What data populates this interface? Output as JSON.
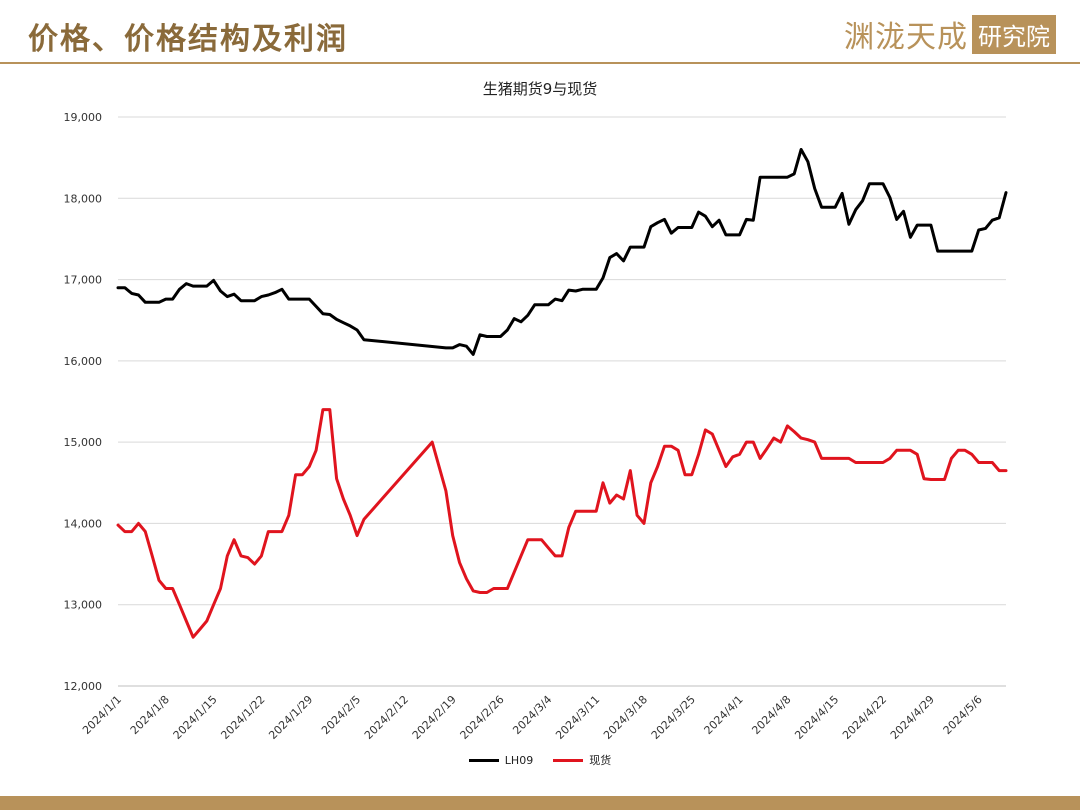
{
  "header": {
    "section_title": "价格、价格结构及利润",
    "brand_main": "渊泷天成",
    "brand_box": "研究院"
  },
  "colors": {
    "accent": "#b8925a",
    "series_futures": "#000000",
    "series_spot": "#e0141e",
    "grid": "#d9d9d9"
  },
  "chart_data": {
    "type": "line",
    "title": "生猪期货9与现货",
    "xlabel": "",
    "ylabel": "",
    "ylim": [
      12000,
      19000
    ],
    "yticks": [
      12000,
      13000,
      14000,
      15000,
      16000,
      17000,
      18000,
      19000
    ],
    "ytick_labels": [
      "12,000",
      "13,000",
      "14,000",
      "15,000",
      "16,000",
      "17,000",
      "18,000",
      "19,000"
    ],
    "xlim": [
      "2024-01-01",
      "2024-05-10"
    ],
    "xticks": [
      "2024-01-01",
      "2024-01-08",
      "2024-01-15",
      "2024-01-22",
      "2024-01-29",
      "2024-02-05",
      "2024-02-12",
      "2024-02-19",
      "2024-02-26",
      "2024-03-04",
      "2024-03-11",
      "2024-03-18",
      "2024-03-25",
      "2024-04-01",
      "2024-04-08",
      "2024-04-15",
      "2024-04-22",
      "2024-04-29",
      "2024-05-06"
    ],
    "xtick_labels": [
      "2024/1/1",
      "2024/1/8",
      "2024/1/15",
      "2024/1/22",
      "2024/1/29",
      "2024/2/5",
      "2024/2/12",
      "2024/2/19",
      "2024/2/26",
      "2024/3/4",
      "2024/3/11",
      "2024/3/18",
      "2024/3/25",
      "2024/4/1",
      "2024/4/8",
      "2024/4/15",
      "2024/4/22",
      "2024/4/29",
      "2024/5/6"
    ],
    "grid": true,
    "legend_position": "bottom",
    "series": [
      {
        "name": "LH09",
        "points": [
          [
            "2024-01-01",
            16900
          ],
          [
            "2024-01-02",
            16900
          ],
          [
            "2024-01-03",
            16830
          ],
          [
            "2024-01-04",
            16810
          ],
          [
            "2024-01-05",
            16720
          ],
          [
            "2024-01-06",
            16720
          ],
          [
            "2024-01-07",
            16720
          ],
          [
            "2024-01-08",
            16760
          ],
          [
            "2024-01-09",
            16760
          ],
          [
            "2024-01-10",
            16880
          ],
          [
            "2024-01-11",
            16950
          ],
          [
            "2024-01-12",
            16920
          ],
          [
            "2024-01-13",
            16920
          ],
          [
            "2024-01-14",
            16920
          ],
          [
            "2024-01-15",
            16990
          ],
          [
            "2024-01-16",
            16860
          ],
          [
            "2024-01-17",
            16790
          ],
          [
            "2024-01-18",
            16820
          ],
          [
            "2024-01-19",
            16740
          ],
          [
            "2024-01-20",
            16740
          ],
          [
            "2024-01-21",
            16740
          ],
          [
            "2024-01-22",
            16790
          ],
          [
            "2024-01-23",
            16810
          ],
          [
            "2024-01-24",
            16840
          ],
          [
            "2024-01-25",
            16880
          ],
          [
            "2024-01-26",
            16760
          ],
          [
            "2024-01-27",
            16760
          ],
          [
            "2024-01-28",
            16760
          ],
          [
            "2024-01-29",
            16760
          ],
          [
            "2024-01-30",
            16670
          ],
          [
            "2024-01-31",
            16580
          ],
          [
            "2024-02-01",
            16570
          ],
          [
            "2024-02-02",
            16510
          ],
          [
            "2024-02-03",
            16470
          ],
          [
            "2024-02-04",
            16430
          ],
          [
            "2024-02-05",
            16380
          ],
          [
            "2024-02-06",
            16260
          ],
          [
            "2024-02-18",
            16160
          ],
          [
            "2024-02-19",
            16160
          ],
          [
            "2024-02-20",
            16200
          ],
          [
            "2024-02-21",
            16180
          ],
          [
            "2024-02-22",
            16080
          ],
          [
            "2024-02-23",
            16320
          ],
          [
            "2024-02-24",
            16300
          ],
          [
            "2024-02-25",
            16300
          ],
          [
            "2024-02-26",
            16300
          ],
          [
            "2024-02-27",
            16380
          ],
          [
            "2024-02-28",
            16520
          ],
          [
            "2024-02-29",
            16480
          ],
          [
            "2024-03-01",
            16560
          ],
          [
            "2024-03-02",
            16690
          ],
          [
            "2024-03-03",
            16690
          ],
          [
            "2024-03-04",
            16690
          ],
          [
            "2024-03-05",
            16760
          ],
          [
            "2024-03-06",
            16740
          ],
          [
            "2024-03-07",
            16870
          ],
          [
            "2024-03-08",
            16860
          ],
          [
            "2024-03-09",
            16880
          ],
          [
            "2024-03-10",
            16880
          ],
          [
            "2024-03-11",
            16880
          ],
          [
            "2024-03-12",
            17020
          ],
          [
            "2024-03-13",
            17270
          ],
          [
            "2024-03-14",
            17320
          ],
          [
            "2024-03-15",
            17230
          ],
          [
            "2024-03-16",
            17400
          ],
          [
            "2024-03-17",
            17400
          ],
          [
            "2024-03-18",
            17400
          ],
          [
            "2024-03-19",
            17650
          ],
          [
            "2024-03-20",
            17700
          ],
          [
            "2024-03-21",
            17740
          ],
          [
            "2024-03-22",
            17570
          ],
          [
            "2024-03-23",
            17640
          ],
          [
            "2024-03-24",
            17640
          ],
          [
            "2024-03-25",
            17640
          ],
          [
            "2024-03-26",
            17830
          ],
          [
            "2024-03-27",
            17780
          ],
          [
            "2024-03-28",
            17650
          ],
          [
            "2024-03-29",
            17730
          ],
          [
            "2024-03-30",
            17550
          ],
          [
            "2024-03-31",
            17550
          ],
          [
            "2024-04-01",
            17550
          ],
          [
            "2024-04-02",
            17740
          ],
          [
            "2024-04-03",
            17730
          ],
          [
            "2024-04-04",
            18260
          ],
          [
            "2024-04-05",
            18260
          ],
          [
            "2024-04-06",
            18260
          ],
          [
            "2024-04-07",
            18260
          ],
          [
            "2024-04-08",
            18260
          ],
          [
            "2024-04-09",
            18300
          ],
          [
            "2024-04-10",
            18600
          ],
          [
            "2024-04-11",
            18450
          ],
          [
            "2024-04-12",
            18120
          ],
          [
            "2024-04-13",
            17890
          ],
          [
            "2024-04-14",
            17890
          ],
          [
            "2024-04-15",
            17890
          ],
          [
            "2024-04-16",
            18060
          ],
          [
            "2024-04-17",
            17680
          ],
          [
            "2024-04-18",
            17860
          ],
          [
            "2024-04-19",
            17970
          ],
          [
            "2024-04-20",
            18180
          ],
          [
            "2024-04-21",
            18180
          ],
          [
            "2024-04-22",
            18180
          ],
          [
            "2024-04-23",
            18010
          ],
          [
            "2024-04-24",
            17740
          ],
          [
            "2024-04-25",
            17840
          ],
          [
            "2024-04-26",
            17520
          ],
          [
            "2024-04-27",
            17670
          ],
          [
            "2024-04-28",
            17670
          ],
          [
            "2024-04-29",
            17670
          ],
          [
            "2024-04-30",
            17350
          ],
          [
            "2024-05-05",
            17350
          ],
          [
            "2024-05-06",
            17610
          ],
          [
            "2024-05-07",
            17630
          ],
          [
            "2024-05-08",
            17730
          ],
          [
            "2024-05-09",
            17760
          ],
          [
            "2024-05-10",
            18070
          ]
        ]
      },
      {
        "name": "现货",
        "points": [
          [
            "2024-01-01",
            13980
          ],
          [
            "2024-01-02",
            13900
          ],
          [
            "2024-01-03",
            13900
          ],
          [
            "2024-01-04",
            14000
          ],
          [
            "2024-01-05",
            13900
          ],
          [
            "2024-01-06",
            13600
          ],
          [
            "2024-01-07",
            13300
          ],
          [
            "2024-01-08",
            13200
          ],
          [
            "2024-01-09",
            13200
          ],
          [
            "2024-01-10",
            13000
          ],
          [
            "2024-01-11",
            12800
          ],
          [
            "2024-01-12",
            12600
          ],
          [
            "2024-01-13",
            12700
          ],
          [
            "2024-01-14",
            12800
          ],
          [
            "2024-01-15",
            13000
          ],
          [
            "2024-01-16",
            13200
          ],
          [
            "2024-01-17",
            13600
          ],
          [
            "2024-01-18",
            13800
          ],
          [
            "2024-01-19",
            13600
          ],
          [
            "2024-01-20",
            13580
          ],
          [
            "2024-01-21",
            13500
          ],
          [
            "2024-01-22",
            13600
          ],
          [
            "2024-01-23",
            13900
          ],
          [
            "2024-01-24",
            13900
          ],
          [
            "2024-01-25",
            13900
          ],
          [
            "2024-01-26",
            14100
          ],
          [
            "2024-01-27",
            14600
          ],
          [
            "2024-01-28",
            14600
          ],
          [
            "2024-01-29",
            14700
          ],
          [
            "2024-01-30",
            14900
          ],
          [
            "2024-01-31",
            15400
          ],
          [
            "2024-02-01",
            15400
          ],
          [
            "2024-02-02",
            14550
          ],
          [
            "2024-02-03",
            14300
          ],
          [
            "2024-02-04",
            14100
          ],
          [
            "2024-02-05",
            13850
          ],
          [
            "2024-02-06",
            14050
          ],
          [
            "2024-02-16",
            15000
          ],
          [
            "2024-02-18",
            14400
          ],
          [
            "2024-02-19",
            13850
          ],
          [
            "2024-02-20",
            13520
          ],
          [
            "2024-02-21",
            13320
          ],
          [
            "2024-02-22",
            13170
          ],
          [
            "2024-02-23",
            13150
          ],
          [
            "2024-02-24",
            13150
          ],
          [
            "2024-02-25",
            13200
          ],
          [
            "2024-02-26",
            13200
          ],
          [
            "2024-02-27",
            13200
          ],
          [
            "2024-02-28",
            13400
          ],
          [
            "2024-02-29",
            13600
          ],
          [
            "2024-03-01",
            13800
          ],
          [
            "2024-03-02",
            13800
          ],
          [
            "2024-03-03",
            13800
          ],
          [
            "2024-03-04",
            13700
          ],
          [
            "2024-03-05",
            13600
          ],
          [
            "2024-03-06",
            13600
          ],
          [
            "2024-03-07",
            13950
          ],
          [
            "2024-03-08",
            14150
          ],
          [
            "2024-03-09",
            14150
          ],
          [
            "2024-03-10",
            14150
          ],
          [
            "2024-03-11",
            14150
          ],
          [
            "2024-03-12",
            14500
          ],
          [
            "2024-03-13",
            14250
          ],
          [
            "2024-03-14",
            14350
          ],
          [
            "2024-03-15",
            14300
          ],
          [
            "2024-03-16",
            14650
          ],
          [
            "2024-03-17",
            14100
          ],
          [
            "2024-03-18",
            14000
          ],
          [
            "2024-03-19",
            14500
          ],
          [
            "2024-03-20",
            14700
          ],
          [
            "2024-03-21",
            14950
          ],
          [
            "2024-03-22",
            14950
          ],
          [
            "2024-03-23",
            14900
          ],
          [
            "2024-03-24",
            14600
          ],
          [
            "2024-03-25",
            14600
          ],
          [
            "2024-03-26",
            14850
          ],
          [
            "2024-03-27",
            15150
          ],
          [
            "2024-03-28",
            15100
          ],
          [
            "2024-03-29",
            14900
          ],
          [
            "2024-03-30",
            14700
          ],
          [
            "2024-03-31",
            14820
          ],
          [
            "2024-04-01",
            14850
          ],
          [
            "2024-04-02",
            15000
          ],
          [
            "2024-04-03",
            15000
          ],
          [
            "2024-04-04",
            14800
          ],
          [
            "2024-04-05",
            14920
          ],
          [
            "2024-04-06",
            15050
          ],
          [
            "2024-04-07",
            15000
          ],
          [
            "2024-04-08",
            15200
          ],
          [
            "2024-04-09",
            15130
          ],
          [
            "2024-04-10",
            15050
          ],
          [
            "2024-04-11",
            15030
          ],
          [
            "2024-04-12",
            15000
          ],
          [
            "2024-04-13",
            14800
          ],
          [
            "2024-04-14",
            14800
          ],
          [
            "2024-04-15",
            14800
          ],
          [
            "2024-04-16",
            14800
          ],
          [
            "2024-04-17",
            14800
          ],
          [
            "2024-04-18",
            14750
          ],
          [
            "2024-04-19",
            14750
          ],
          [
            "2024-04-20",
            14750
          ],
          [
            "2024-04-21",
            14750
          ],
          [
            "2024-04-22",
            14750
          ],
          [
            "2024-04-23",
            14800
          ],
          [
            "2024-04-24",
            14900
          ],
          [
            "2024-04-25",
            14900
          ],
          [
            "2024-04-26",
            14900
          ],
          [
            "2024-04-27",
            14850
          ],
          [
            "2024-04-28",
            14550
          ],
          [
            "2024-04-29",
            14540
          ],
          [
            "2024-04-30",
            14540
          ],
          [
            "2024-05-01",
            14540
          ],
          [
            "2024-05-02",
            14800
          ],
          [
            "2024-05-03",
            14900
          ],
          [
            "2024-05-04",
            14900
          ],
          [
            "2024-05-05",
            14850
          ],
          [
            "2024-05-06",
            14750
          ],
          [
            "2024-05-07",
            14750
          ],
          [
            "2024-05-08",
            14750
          ],
          [
            "2024-05-09",
            14650
          ],
          [
            "2024-05-10",
            14650
          ]
        ]
      }
    ]
  }
}
